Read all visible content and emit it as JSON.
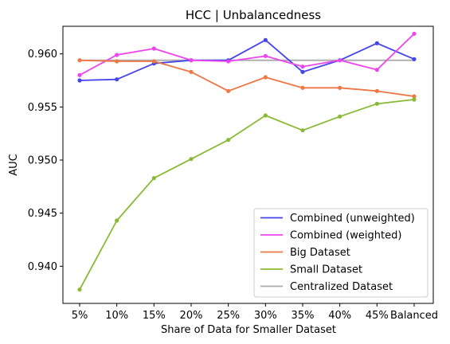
{
  "chart_data": {
    "type": "line",
    "title": "HCC | Unbalancedness",
    "xlabel": "Share of Data for Smaller Dataset",
    "ylabel": "AUC",
    "categories": [
      "5%",
      "10%",
      "15%",
      "20%",
      "25%",
      "30%",
      "35%",
      "40%",
      "45%",
      "Balanced"
    ],
    "ylim": [
      0.9365,
      0.9626
    ],
    "yticks": [
      0.94,
      0.945,
      0.95,
      0.955,
      0.96
    ],
    "ytick_labels": [
      "0.940",
      "0.945",
      "0.950",
      "0.955",
      "0.960"
    ],
    "grid": false,
    "legend_position": "lower-right",
    "series": [
      {
        "name": "Combined (unweighted)",
        "color": "#4444ee",
        "marker": true,
        "values": [
          0.9575,
          0.9576,
          0.9591,
          0.9594,
          0.9594,
          0.9613,
          0.9583,
          0.9594,
          0.961,
          0.9595
        ]
      },
      {
        "name": "Combined (weighted)",
        "color": "#ee44ee",
        "marker": true,
        "values": [
          0.958,
          0.9599,
          0.9605,
          0.9594,
          0.9593,
          0.9598,
          0.9588,
          0.9594,
          0.9585,
          0.9619
        ]
      },
      {
        "name": "Big Dataset",
        "color": "#ee7744",
        "marker": true,
        "values": [
          0.9594,
          0.9593,
          0.9593,
          0.9583,
          0.9565,
          0.9578,
          0.9568,
          0.9568,
          0.9565,
          0.956
        ]
      },
      {
        "name": "Small Dataset",
        "color": "#88bb33",
        "marker": true,
        "values": [
          0.9378,
          0.9443,
          0.9483,
          0.9501,
          0.9519,
          0.9542,
          0.9528,
          0.9541,
          0.9553,
          0.9557
        ]
      },
      {
        "name": "Centralized Dataset",
        "color": "#aaaaaa",
        "marker": false,
        "values": [
          0.9594,
          0.9594,
          0.9594,
          0.9594,
          0.9594,
          0.9594,
          0.9594,
          0.9594,
          0.9594,
          0.9594
        ]
      }
    ]
  }
}
